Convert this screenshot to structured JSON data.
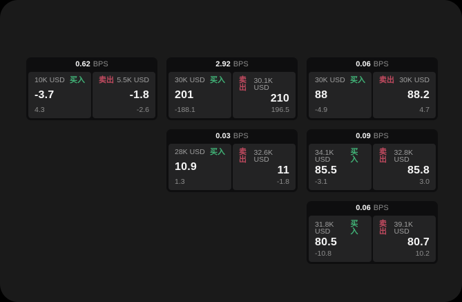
{
  "window": {
    "outer_background": "#000000",
    "background": "#1a1a1a"
  },
  "colors": {
    "buy_green": "#41b377",
    "sell_red": "#c04a5f",
    "card_background": "#0e0e0f",
    "panel_background": "#232324",
    "value_text": "#f5f5f5",
    "muted_text": "#8d8d8d"
  },
  "labels": {
    "buy": "买入",
    "sell": "卖出",
    "bps_unit": "BPS"
  },
  "cards": [
    {
      "bps": "0.62",
      "buy": {
        "amount": "10K USD",
        "price": "-3.7",
        "delta": "4.3"
      },
      "sell": {
        "amount": "5.5K USD",
        "price": "-1.8",
        "delta": "-2.6"
      }
    },
    {
      "bps": "2.92",
      "buy": {
        "amount": "30K USD",
        "price": "201",
        "delta": "-188.1"
      },
      "sell": {
        "amount": "30.1K USD",
        "price": "210",
        "delta": "196.5"
      }
    },
    {
      "bps": "0.06",
      "buy": {
        "amount": "30K USD",
        "price": "88",
        "delta": "-4.9"
      },
      "sell": {
        "amount": "30K USD",
        "price": "88.2",
        "delta": "4.7"
      }
    },
    {
      "bps": "0.03",
      "buy": {
        "amount": "28K USD",
        "price": "10.9",
        "delta": "1.3"
      },
      "sell": {
        "amount": "32.6K USD",
        "price": "11",
        "delta": "-1.8"
      }
    },
    {
      "bps": "0.09",
      "buy": {
        "amount": "34.1K USD",
        "price": "85.5",
        "delta": "-3.1"
      },
      "sell": {
        "amount": "32.8K USD",
        "price": "85.8",
        "delta": "3.0"
      }
    },
    {
      "bps": "0.06",
      "buy": {
        "amount": "31.8K USD",
        "price": "80.5",
        "delta": "-10.8"
      },
      "sell": {
        "amount": "39.1K USD",
        "price": "80.7",
        "delta": "10.2"
      }
    }
  ]
}
